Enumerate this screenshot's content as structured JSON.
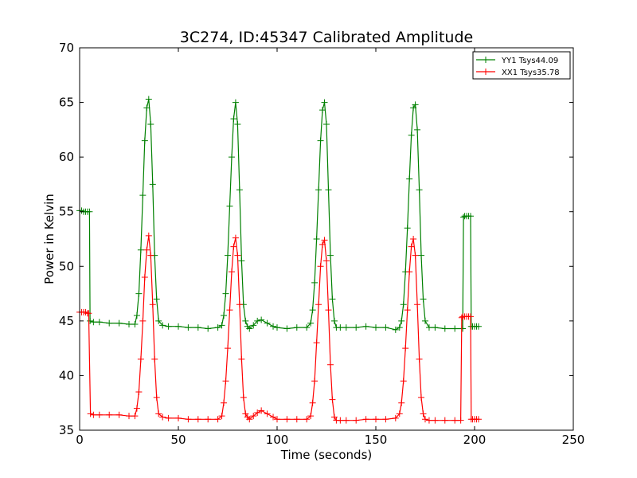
{
  "chart_data": {
    "type": "line",
    "title": "3C274, ID:45347 Calibrated Amplitude",
    "xlabel": "Time (seconds)",
    "ylabel": "Power in Kelvin",
    "xlim": [
      0,
      250
    ],
    "ylim": [
      35,
      70
    ],
    "xticks": [
      0,
      50,
      100,
      150,
      200,
      250
    ],
    "yticks": [
      35,
      40,
      45,
      50,
      55,
      60,
      65,
      70
    ],
    "grid": false,
    "legend_position": "top-right",
    "marker": "plus",
    "series": [
      {
        "name": "YY1 Tsys44.09",
        "color": "#008000",
        "x": [
          0,
          1,
          2,
          3,
          4,
          5,
          5.3,
          7,
          10,
          15,
          20,
          25,
          28,
          29,
          30,
          31,
          32,
          33,
          34,
          35,
          36,
          37,
          38,
          39,
          40,
          42,
          45,
          50,
          55,
          60,
          65,
          70,
          72,
          73,
          74,
          75,
          76,
          77,
          78,
          79,
          80,
          81,
          82,
          83,
          84,
          85,
          86,
          88,
          90,
          92,
          95,
          98,
          100,
          105,
          110,
          115,
          117,
          118,
          119,
          120,
          121,
          122,
          123,
          124,
          125,
          126,
          127,
          128,
          129,
          130,
          132,
          135,
          140,
          145,
          150,
          155,
          160,
          162,
          163,
          164,
          165,
          166,
          167,
          168,
          169,
          170,
          171,
          172,
          173,
          174,
          175,
          177,
          180,
          185,
          190,
          194,
          194.4,
          195,
          196,
          197,
          198,
          198.3,
          199,
          200,
          201,
          202
        ],
        "values": [
          55.1,
          55.1,
          55.0,
          55.0,
          55.0,
          55.0,
          45.0,
          44.9,
          44.9,
          44.8,
          44.8,
          44.7,
          44.7,
          45.5,
          47.5,
          51.5,
          56.5,
          61.5,
          64.5,
          65.3,
          63.0,
          57.5,
          51.0,
          47.0,
          45.0,
          44.6,
          44.5,
          44.5,
          44.4,
          44.4,
          44.3,
          44.4,
          44.6,
          45.5,
          47.5,
          51.0,
          55.5,
          60.0,
          63.5,
          65.0,
          63.0,
          57.0,
          50.5,
          46.5,
          45.0,
          44.5,
          44.3,
          44.6,
          45.0,
          45.1,
          44.8,
          44.5,
          44.4,
          44.3,
          44.4,
          44.4,
          44.8,
          46.0,
          48.5,
          52.5,
          57.0,
          61.5,
          64.3,
          65.0,
          63.0,
          57.0,
          51.0,
          47.0,
          45.0,
          44.4,
          44.4,
          44.4,
          44.4,
          44.5,
          44.4,
          44.4,
          44.2,
          44.4,
          45.0,
          46.5,
          49.5,
          53.5,
          58.0,
          62.0,
          64.5,
          64.8,
          62.5,
          57.0,
          51.0,
          47.0,
          45.0,
          44.4,
          44.4,
          44.3,
          44.3,
          44.3,
          54.5,
          54.6,
          54.6,
          54.6,
          54.6,
          44.5,
          44.5,
          44.5,
          44.5,
          44.5
        ]
      },
      {
        "name": "XX1 Tsys35.78",
        "color": "#ff0000",
        "x": [
          0,
          1,
          2,
          3,
          4,
          4.6,
          5.5,
          7,
          10,
          15,
          20,
          25,
          28,
          29,
          30,
          31,
          32,
          33,
          34,
          35,
          36,
          37,
          38,
          39,
          40,
          42,
          45,
          50,
          55,
          60,
          65,
          70,
          72,
          73,
          74,
          75,
          76,
          77,
          78,
          79,
          80,
          81,
          82,
          83,
          84,
          85,
          86,
          88,
          90,
          92,
          95,
          98,
          100,
          105,
          110,
          115,
          117,
          118,
          119,
          120,
          121,
          122,
          123,
          124,
          125,
          126,
          127,
          128,
          129,
          130,
          132,
          135,
          140,
          145,
          150,
          155,
          160,
          162,
          163,
          164,
          165,
          166,
          167,
          168,
          169,
          170,
          171,
          172,
          173,
          174,
          175,
          177,
          180,
          185,
          190,
          193,
          193.5,
          194,
          195,
          196,
          197,
          198,
          198.3,
          199,
          200,
          201,
          202
        ],
        "values": [
          45.8,
          45.8,
          45.8,
          45.8,
          45.7,
          45.7,
          36.5,
          36.4,
          36.4,
          36.4,
          36.4,
          36.3,
          36.3,
          37.0,
          38.5,
          41.5,
          45.0,
          49.0,
          51.5,
          52.8,
          51.0,
          46.5,
          41.5,
          38.0,
          36.5,
          36.2,
          36.1,
          36.1,
          36.0,
          36.0,
          36.0,
          36.0,
          36.3,
          37.5,
          39.5,
          42.5,
          46.0,
          49.5,
          51.8,
          52.6,
          51.0,
          46.5,
          41.5,
          38.0,
          36.5,
          36.2,
          36.0,
          36.3,
          36.6,
          36.8,
          36.5,
          36.2,
          36.0,
          36.0,
          36.0,
          36.0,
          36.3,
          37.5,
          39.5,
          43.0,
          46.5,
          50.0,
          52.0,
          52.4,
          50.5,
          46.0,
          41.0,
          37.8,
          36.2,
          35.9,
          35.9,
          35.9,
          35.9,
          36.0,
          36.0,
          36.0,
          36.1,
          36.5,
          37.5,
          39.5,
          42.5,
          46.0,
          49.5,
          51.8,
          52.5,
          51.0,
          46.5,
          41.5,
          38.0,
          36.5,
          36.0,
          35.9,
          35.9,
          35.9,
          35.9,
          35.9,
          45.3,
          45.4,
          45.4,
          45.4,
          45.4,
          45.4,
          36.0,
          36.0,
          36.0,
          36.0,
          36.0
        ]
      }
    ]
  }
}
